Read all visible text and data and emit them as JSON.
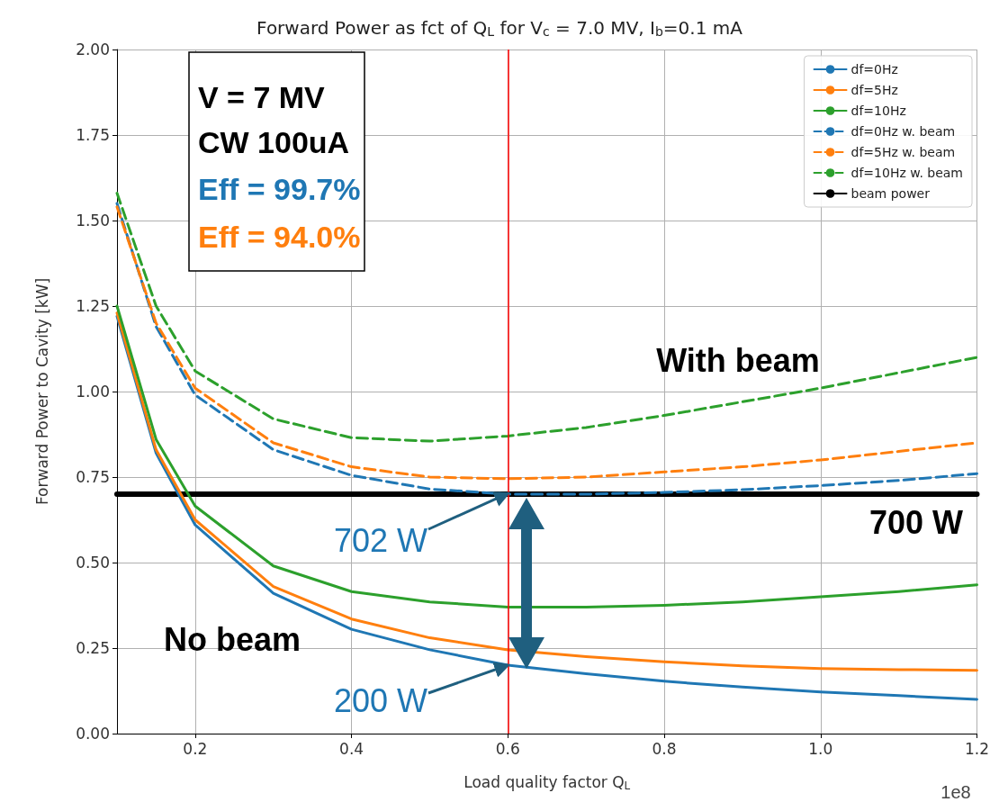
{
  "chart_data": {
    "type": "line",
    "title": "Forward Power as fct of Q$_{L}$ for V$_{c}$ = 7.0 MV, I$_{b}$=0.1 mA",
    "xlabel": "Load quality factor Q$_{L}$",
    "ylabel": "Forward Power to Cavity [kW]",
    "x": [
      0.1,
      0.15,
      0.2,
      0.3,
      0.4,
      0.5,
      0.6,
      0.7,
      0.8,
      0.9,
      1.0,
      1.1,
      1.2
    ],
    "series": [
      {
        "name": "df=0Hz",
        "color": "#1f77b4",
        "values": [
          1.22,
          0.82,
          0.61,
          0.41,
          0.305,
          0.245,
          0.2,
          0.175,
          0.153,
          0.136,
          0.122,
          0.111,
          0.1
        ]
      },
      {
        "name": "df=5Hz",
        "color": "#ff7f0e",
        "values": [
          1.23,
          0.83,
          0.625,
          0.43,
          0.335,
          0.28,
          0.245,
          0.225,
          0.21,
          0.198,
          0.19,
          0.187,
          0.185
        ]
      },
      {
        "name": "df=10Hz",
        "color": "#2ca02c",
        "values": [
          1.25,
          0.86,
          0.665,
          0.49,
          0.415,
          0.385,
          0.37,
          0.37,
          0.375,
          0.385,
          0.4,
          0.415,
          0.435
        ]
      },
      {
        "name": "df=0Hz w. beam",
        "color": "#1f77b4",
        "line_style": "dashed",
        "values": [
          1.55,
          1.19,
          0.99,
          0.83,
          0.755,
          0.715,
          0.7,
          0.7,
          0.705,
          0.713,
          0.725,
          0.74,
          0.76
        ]
      },
      {
        "name": "df=5Hz w. beam",
        "color": "#ff7f0e",
        "line_style": "dashed",
        "values": [
          1.54,
          1.2,
          1.01,
          0.85,
          0.78,
          0.75,
          0.745,
          0.75,
          0.765,
          0.78,
          0.8,
          0.825,
          0.85
        ]
      },
      {
        "name": "df=10Hz w. beam",
        "color": "#2ca02c",
        "line_style": "dashed",
        "values": [
          1.58,
          1.25,
          1.06,
          0.92,
          0.865,
          0.855,
          0.87,
          0.895,
          0.93,
          0.97,
          1.01,
          1.055,
          1.1
        ]
      },
      {
        "name": "beam power",
        "color": "#000000",
        "x": [
          0.1,
          1.2
        ],
        "values": [
          0.7,
          0.7
        ]
      }
    ],
    "xlim": [
      0.1,
      1.2
    ],
    "xticks": [
      0.2,
      0.4,
      0.6,
      0.8,
      {
        "value": 1,
        "label": "1.0"
      },
      1.2
    ],
    "ylim": [
      0,
      2
    ],
    "yticks": [
      {
        "value": 0,
        "label": "0.00"
      },
      {
        "value": 0.25,
        "label": "0.25"
      },
      {
        "value": 0.5,
        "label": "0.50"
      },
      {
        "value": 0.75,
        "label": "0.75"
      },
      {
        "value": 1,
        "label": "1.00"
      },
      {
        "value": 1.25,
        "label": "1.25"
      },
      {
        "value": 1.5,
        "label": "1.50"
      },
      {
        "value": 1.75,
        "label": "1.75"
      },
      {
        "value": 2,
        "label": "2.00"
      }
    ],
    "ref_lines": [
      {
        "axis": "x",
        "value": 0.6,
        "color": "#ff0000"
      }
    ],
    "annotations": [
      "V = 7 MV",
      "CW 100uA",
      "Eff = 99.7%",
      "Eff = 94.0%",
      "With beam",
      "No beam",
      "700 W",
      {
        "text": "702 W",
        "x": 0.6,
        "y": 0.702
      },
      {
        "text": "200 W",
        "x": 0.6,
        "y": 0.2
      },
      "1e8"
    ],
    "grid": true,
    "legend": "top right",
    "marker": "none",
    "line_style": "solid"
  }
}
